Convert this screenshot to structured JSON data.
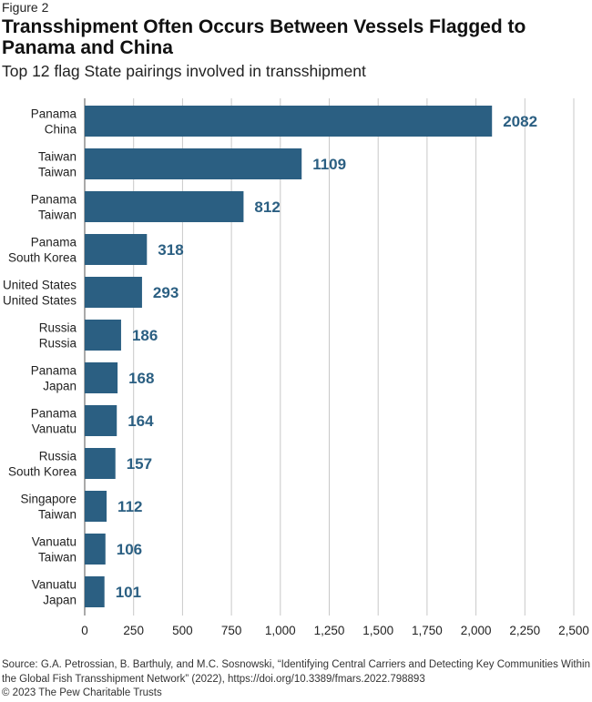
{
  "figure_label": "Figure 2",
  "source": "Source: G.A. Petrossian, B. Barthuly, and M.C. Sosnowski, “Identifying Central Carriers and Detecting Key Communities Within the Global Fish Transshipment Network” (2022), https://doi.org/10.3389/fmars.2022.798893",
  "copyright": "© 2023 The Pew Charitable Trusts",
  "colors": {
    "bar": "#2b5f82",
    "value_label": "#2b5f82",
    "grid": "#c8c8c8"
  },
  "chart_data": {
    "type": "bar",
    "orientation": "horizontal",
    "title": "Transshipment Often Occurs Between Vessels Flagged to Panama and China",
    "subtitle": "Top 12 flag State pairings involved in transshipment",
    "categories": [
      [
        "Panama",
        "China"
      ],
      [
        "Taiwan",
        "Taiwan"
      ],
      [
        "Panama",
        "Taiwan"
      ],
      [
        "Panama",
        "South Korea"
      ],
      [
        "United States",
        "United States"
      ],
      [
        "Russia",
        "Russia"
      ],
      [
        "Panama",
        "Japan"
      ],
      [
        "Panama",
        "Vanuatu"
      ],
      [
        "Russia",
        "South Korea"
      ],
      [
        "Singapore",
        "Taiwan"
      ],
      [
        "Vanuatu",
        "Taiwan"
      ],
      [
        "Vanuatu",
        "Japan"
      ]
    ],
    "values": [
      2082,
      1109,
      812,
      318,
      293,
      186,
      168,
      164,
      157,
      112,
      106,
      101
    ],
    "value_labels": [
      "2082",
      "1109",
      "812",
      "318",
      "293",
      "186",
      "168",
      "164",
      "157",
      "112",
      "106",
      "101"
    ],
    "xlim": [
      0,
      2500
    ],
    "xticks": [
      0,
      250,
      500,
      750,
      1000,
      1250,
      1500,
      1750,
      2000,
      2250,
      2500
    ],
    "xtick_labels": [
      "0",
      "250",
      "500",
      "750",
      "1,000",
      "1,250",
      "1,500",
      "1,750",
      "2,000",
      "2,250",
      "2,500"
    ],
    "grid": true,
    "legend": "none"
  }
}
